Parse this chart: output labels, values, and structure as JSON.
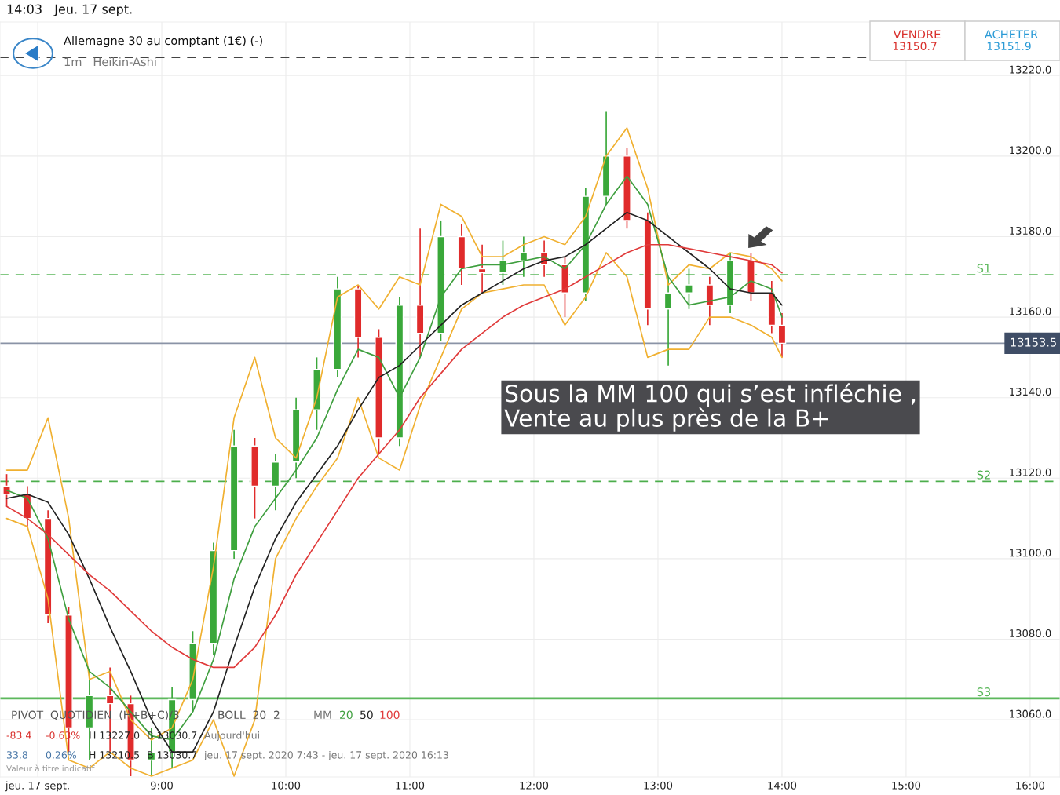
{
  "chart_data": {
    "type": "candlestick",
    "title": "Allemagne 30 au comptant (1€) (-)",
    "subtitle": "1m   Heikin-Ashi",
    "x": [
      7.75,
      7.917,
      8.083,
      8.25,
      8.417,
      8.583,
      8.75,
      8.917,
      9.083,
      9.25,
      9.417,
      9.583,
      9.75,
      9.917,
      10.083,
      10.25,
      10.417,
      10.583,
      10.75,
      10.917,
      11.083,
      11.25,
      11.417,
      11.583,
      11.75,
      11.917,
      12.083,
      12.25,
      12.417,
      12.583,
      12.75,
      12.917,
      13.083,
      13.25,
      13.417,
      13.583,
      13.75,
      13.917,
      14.0
    ],
    "ohlc": [
      [
        13118,
        13121,
        13113,
        13116
      ],
      [
        13116,
        13118,
        13108,
        13110
      ],
      [
        13110,
        13112,
        13084,
        13086
      ],
      [
        13086,
        13088,
        13052,
        13058
      ],
      [
        13058,
        13072,
        13050,
        13066
      ],
      [
        13066,
        13073,
        13052,
        13064
      ],
      [
        13064,
        13066,
        13046,
        13050
      ],
      [
        13050,
        13058,
        13046,
        13052
      ],
      [
        13052,
        13068,
        13048,
        13065
      ],
      [
        13065,
        13082,
        13062,
        13079
      ],
      [
        13079,
        13104,
        13076,
        13102
      ],
      [
        13102,
        13132,
        13100,
        13128
      ],
      [
        13128,
        13130,
        13110,
        13118
      ],
      [
        13118,
        13126,
        13112,
        13124
      ],
      [
        13124,
        13140,
        13120,
        13137
      ],
      [
        13137,
        13150,
        13132,
        13147
      ],
      [
        13147,
        13170,
        13145,
        13167
      ],
      [
        13167,
        13168,
        13150,
        13155
      ],
      [
        13155,
        13157,
        13126,
        13130
      ],
      [
        13130,
        13165,
        13128,
        13163
      ],
      [
        13163,
        13182,
        13150,
        13156
      ],
      [
        13156,
        13184,
        13154,
        13180
      ],
      [
        13180,
        13183,
        13168,
        13172
      ],
      [
        13172,
        13178,
        13166,
        13171
      ],
      [
        13171,
        13179,
        13168,
        13174
      ],
      [
        13174,
        13180,
        13170,
        13176
      ],
      [
        13176,
        13179,
        13170,
        13173
      ],
      [
        13173,
        13175,
        13160,
        13166
      ],
      [
        13166,
        13192,
        13164,
        13190
      ],
      [
        13190,
        13211,
        13188,
        13200
      ],
      [
        13200,
        13202,
        13182,
        13184
      ],
      [
        13184,
        13186,
        13158,
        13162
      ],
      [
        13162,
        13170,
        13148,
        13166
      ],
      [
        13166,
        13172,
        13162,
        13168
      ],
      [
        13168,
        13170,
        13158,
        13163
      ],
      [
        13163,
        13176,
        13161,
        13174
      ],
      [
        13174,
        13176,
        13164,
        13166
      ],
      [
        13166,
        13169,
        13156,
        13158
      ],
      [
        13158,
        13161,
        13150,
        13153.5
      ]
    ],
    "colors": [
      "#e02b2b",
      "#e02b2b",
      "#e02b2b",
      "#e02b2b",
      "#3aa83a",
      "#e02b2b",
      "#e02b2b",
      "#3aa83a",
      "#3aa83a",
      "#3aa83a",
      "#3aa83a",
      "#3aa83a",
      "#e02b2b",
      "#3aa83a",
      "#3aa83a",
      "#3aa83a",
      "#3aa83a",
      "#e02b2b",
      "#e02b2b",
      "#3aa83a",
      "#e02b2b",
      "#3aa83a",
      "#e02b2b",
      "#e02b2b",
      "#3aa83a",
      "#3aa83a",
      "#e02b2b",
      "#e02b2b",
      "#3aa83a",
      "#3aa83a",
      "#e02b2b",
      "#e02b2b",
      "#3aa83a",
      "#3aa83a",
      "#e02b2b",
      "#3aa83a",
      "#e02b2b",
      "#e02b2b",
      "#e02b2b"
    ],
    "series": [
      {
        "type": "line",
        "color": "#f0b030",
        "values": [
          13122,
          13122,
          13135,
          13110,
          13070,
          13072,
          13060,
          13055,
          13058,
          13070,
          13098,
          13135,
          13150,
          13130,
          13125,
          13140,
          13165,
          13168,
          13162,
          13170,
          13168,
          13188,
          13185,
          13175,
          13175,
          13178,
          13180,
          13178,
          13185,
          13200,
          13207,
          13192,
          13168,
          13173,
          13172,
          13176,
          13175,
          13172,
          13169
        ]
      },
      {
        "type": "line",
        "color": "#f0b030",
        "values": [
          13110,
          13108,
          13090,
          13050,
          13048,
          13052,
          13048,
          13046,
          13048,
          13050,
          13060,
          13046,
          13060,
          13100,
          13110,
          13118,
          13125,
          13140,
          13125,
          13122,
          13138,
          13150,
          13162,
          13166,
          13167,
          13168,
          13168,
          13158,
          13165,
          13176,
          13170,
          13150,
          13152,
          13152,
          13160,
          13160,
          13158,
          13155,
          13150
        ]
      },
      {
        "type": "line",
        "name": "20",
        "color": "#3f9f3f",
        "values": [
          13117,
          13115,
          13105,
          13085,
          13072,
          13068,
          13062,
          13056,
          13055,
          13062,
          13075,
          13095,
          13108,
          13115,
          13122,
          13130,
          13142,
          13152,
          13150,
          13140,
          13150,
          13165,
          13172,
          13173,
          13173,
          13174,
          13175,
          13172,
          13178,
          13188,
          13195,
          13188,
          13170,
          13163,
          13164,
          13165,
          13169,
          13167,
          13160
        ]
      },
      {
        "type": "line",
        "name": "50",
        "color": "#222222",
        "values": [
          13115,
          13116,
          13114,
          13106,
          13095,
          13083,
          13072,
          13060,
          13052,
          13052,
          13062,
          13078,
          13093,
          13105,
          13114,
          13121,
          13128,
          13137,
          13145,
          13148,
          13153,
          13158,
          13163,
          13166,
          13169,
          13172,
          13174,
          13175,
          13178,
          13182,
          13186,
          13184,
          13180,
          13176,
          13172,
          13167,
          13166,
          13166,
          13163
        ]
      },
      {
        "type": "line",
        "name": "100",
        "color": "#e03a3a",
        "values": [
          13113,
          13110,
          13106,
          13101,
          13096,
          13092,
          13087,
          13082,
          13078,
          13075,
          13073,
          13073,
          13078,
          13086,
          13096,
          13104,
          13112,
          13120,
          13126,
          13132,
          13140,
          13146,
          13152,
          13156,
          13160,
          13163,
          13165,
          13167,
          13170,
          13173,
          13176,
          13178,
          13178,
          13177,
          13176,
          13175,
          13174,
          13173,
          13171
        ]
      }
    ],
    "ref_lines": [
      {
        "axis": "y",
        "value": 13224.5,
        "color": "#444444",
        "line_style": "dashed"
      },
      {
        "axis": "y",
        "value": 13170.5,
        "label": "S1",
        "color": "#5cb85c",
        "line_style": "dashed"
      },
      {
        "axis": "y",
        "value": 13119.2,
        "label": "S2",
        "color": "#4cae4c",
        "line_style": "dashed"
      },
      {
        "axis": "y",
        "value": 13065.3,
        "label": "S3",
        "color": "#5cb85c",
        "line_style": "solid"
      },
      {
        "axis": "y",
        "value": 13153.5,
        "label": "13153.5",
        "color": "#8a93a6",
        "line_style": "solid"
      }
    ],
    "xlim": [
      7.696,
      16.241
    ],
    "ylim": [
      13045.8,
      13233.3
    ],
    "xticks": [
      {
        "value": 8,
        "label": "jeu. 17 sept."
      },
      {
        "value": 9,
        "label": "9:00"
      },
      {
        "value": 10,
        "label": "10:00"
      },
      {
        "value": 11,
        "label": "11:00"
      },
      {
        "value": 12,
        "label": "12:00"
      },
      {
        "value": 13,
        "label": "13:00"
      },
      {
        "value": 14,
        "label": "14:00"
      },
      {
        "value": 15,
        "label": "15:00"
      },
      {
        "value": 16,
        "label": "16:00"
      }
    ],
    "yticks": [
      {
        "value": 13060,
        "label": "13060.0"
      },
      {
        "value": 13080,
        "label": "13080.0"
      },
      {
        "value": 13100,
        "label": "13100.0"
      },
      {
        "value": 13120,
        "label": "13120.0"
      },
      {
        "value": 13140,
        "label": "13140.0"
      },
      {
        "value": 13160,
        "label": "13160.0"
      },
      {
        "value": 13180,
        "label": "13180.0"
      },
      {
        "value": 13200,
        "label": "13200.0"
      },
      {
        "value": 13220,
        "label": "13220.0"
      }
    ],
    "grid": true,
    "annotations": [
      "14:03   Jeu. 17 sept.",
      "VENDRE",
      "13150.7",
      "ACHETER",
      "13151.9",
      "Sous la MM 100 qui s’est infléchie ,\nVente au plus près de la B+",
      "PIVOT  QUOTIDIEN  (H+B+C)/3",
      "BOLL  20  2",
      "MM",
      "-83.4",
      "-0.63%",
      "H 13227.0",
      "B 13030.7",
      "Aujourd'hui",
      "33.8",
      "0.26%",
      "H 13210.5",
      "B 13030.7",
      "jeu. 17 sept. 2020 7:43 - jeu. 17 sept. 2020 16:13",
      "Valeur à titre indicatif"
    ]
  }
}
